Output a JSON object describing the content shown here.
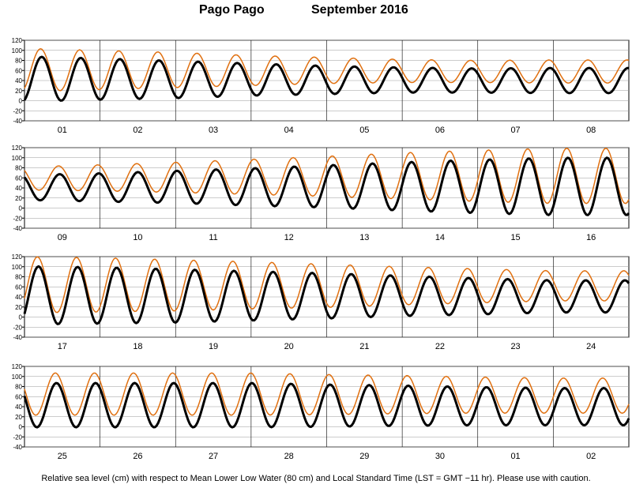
{
  "header": {
    "station": "Pago Pago",
    "month": "September   2016"
  },
  "caption": "Relative sea level (cm) with respect to Mean Lower Low Water (80 cm) and Local Standard Time (LST = GMT −11 hr). Please use with caution.",
  "chart_data": [
    {
      "type": "line",
      "panel": 1,
      "days": [
        "01",
        "02",
        "03",
        "04",
        "05",
        "06",
        "07",
        "08"
      ],
      "ylim": [
        -40,
        120
      ],
      "yticks": [
        -40,
        -20,
        0,
        20,
        40,
        60,
        80,
        100,
        120
      ],
      "grid": "vertical day separators",
      "series": [
        {
          "color": "#e07010",
          "daily_amplitude_cm": [
            43,
            39,
            35,
            30,
            26,
            23,
            22,
            23
          ],
          "daily_mean_cm": [
            61,
            61,
            61,
            60,
            60,
            59,
            58,
            58
          ]
        },
        {
          "color": "#000000",
          "daily_amplitude_cm": [
            45,
            41,
            37,
            32,
            28,
            25,
            24,
            25
          ],
          "daily_mean_cm": [
            43,
            43,
            42,
            42,
            41,
            41,
            40,
            40
          ]
        }
      ]
    },
    {
      "type": "line",
      "panel": 2,
      "days": [
        "09",
        "10",
        "11",
        "12",
        "13",
        "14",
        "15",
        "16"
      ],
      "ylim": [
        -40,
        120
      ],
      "yticks": [
        -40,
        -20,
        0,
        20,
        40,
        60,
        80,
        100,
        120
      ],
      "grid": "vertical day separators",
      "series": [
        {
          "color": "#e07010",
          "daily_amplitude_cm": [
            23,
            26,
            30,
            35,
            40,
            46,
            51,
            55
          ],
          "daily_mean_cm": [
            59,
            60,
            61,
            62,
            63,
            64,
            64,
            64
          ]
        },
        {
          "color": "#000000",
          "daily_amplitude_cm": [
            25,
            28,
            32,
            37,
            42,
            48,
            53,
            57
          ],
          "daily_mean_cm": [
            41,
            41,
            42,
            42,
            43,
            43,
            43,
            43
          ]
        }
      ]
    },
    {
      "type": "line",
      "panel": 3,
      "days": [
        "17",
        "18",
        "19",
        "20",
        "21",
        "22",
        "23",
        "24"
      ],
      "ylim": [
        -40,
        120
      ],
      "yticks": [
        -40,
        -20,
        0,
        20,
        40,
        60,
        80,
        100,
        120
      ],
      "grid": "vertical day separators",
      "series": [
        {
          "color": "#e07010",
          "daily_amplitude_cm": [
            56,
            54,
            51,
            47,
            43,
            38,
            34,
            30
          ],
          "daily_mean_cm": [
            64,
            64,
            63,
            63,
            62,
            62,
            62,
            62
          ]
        },
        {
          "color": "#000000",
          "daily_amplitude_cm": [
            58,
            56,
            53,
            49,
            45,
            40,
            36,
            32
          ],
          "daily_mean_cm": [
            43,
            43,
            42,
            42,
            42,
            42,
            41,
            41
          ]
        }
      ]
    },
    {
      "type": "line",
      "panel": 4,
      "days": [
        "25",
        "26",
        "27",
        "28",
        "29",
        "30",
        "01",
        "02"
      ],
      "ylim": [
        -40,
        120
      ],
      "yticks": [
        -40,
        -20,
        0,
        20,
        40,
        60,
        80,
        100,
        120
      ],
      "grid": "vertical day separators",
      "series": [
        {
          "color": "#e07010",
          "daily_amplitude_cm": [
            42,
            42,
            42,
            42,
            40,
            38,
            36,
            35
          ],
          "daily_mean_cm": [
            65,
            65,
            65,
            65,
            64,
            64,
            63,
            62
          ]
        },
        {
          "color": "#000000",
          "daily_amplitude_cm": [
            44,
            44,
            44,
            44,
            42,
            40,
            38,
            37
          ],
          "daily_mean_cm": [
            43,
            43,
            43,
            43,
            42,
            42,
            41,
            40
          ]
        }
      ]
    }
  ]
}
